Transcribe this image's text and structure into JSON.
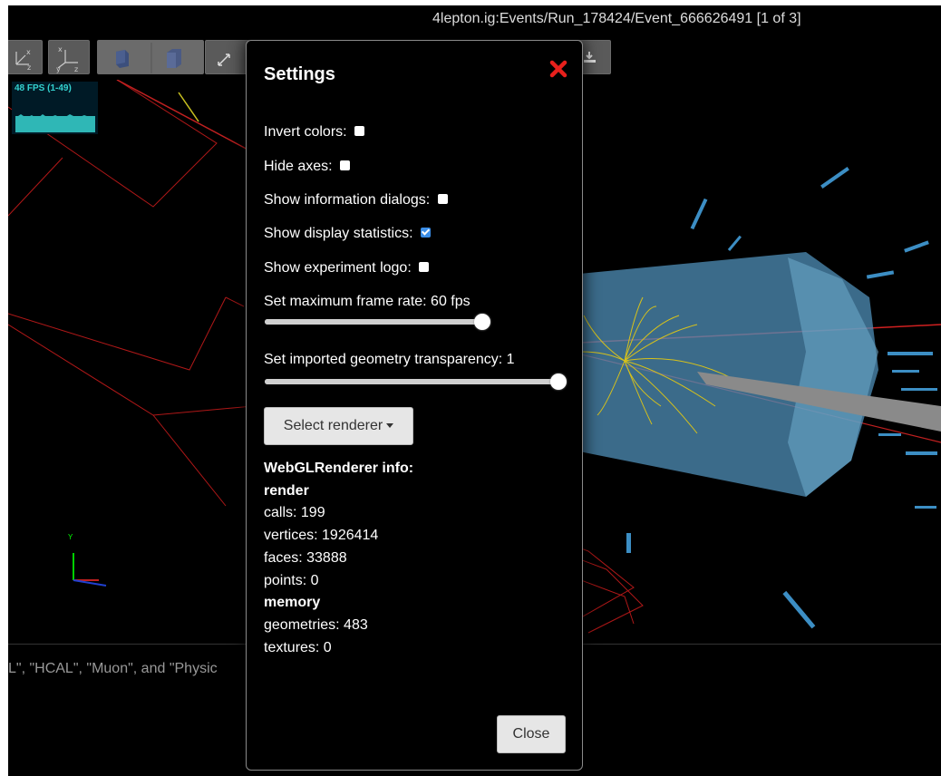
{
  "window": {
    "title": "4lepton.ig:Events/Run_178424/Event_666626491 [1 of 3]"
  },
  "toolbar": {
    "buttons": [
      "view-xz-icon",
      "view-yz-icon",
      "perspective-cube-icon",
      "orthographic-cube-icon",
      "fullscreen-icon",
      "download-icon"
    ]
  },
  "stats": {
    "fps_label": "48 FPS (1-49)"
  },
  "viewport": {
    "axes_y_label": "Y"
  },
  "lower_panel": {
    "text": "L\", \"HCAL\", \"Muon\", and \"Physic"
  },
  "settings": {
    "title": "Settings",
    "options": [
      {
        "label": "Invert colors:",
        "checked": false
      },
      {
        "label": "Hide axes:",
        "checked": false
      },
      {
        "label": "Show information dialogs:",
        "checked": false
      },
      {
        "label": "Show display statistics:",
        "checked": true
      },
      {
        "label": "Show experiment logo:",
        "checked": false
      }
    ],
    "frame_rate": {
      "label": "Set maximum frame rate: 60 fps",
      "value": 60,
      "max": 60
    },
    "transparency": {
      "label": "Set imported geometry transparency: 1",
      "value": 1,
      "max": 1
    },
    "renderer_button": "Select renderer",
    "info": {
      "heading": "WebGLRenderer info:",
      "render_heading": "render",
      "calls": "calls: 199",
      "vertices": "vertices: 1926414",
      "faces": "faces: 33888",
      "points": "points: 0",
      "memory_heading": "memory",
      "geometries": "geometries: 483",
      "textures": "textures: 0"
    },
    "close_button": "Close"
  },
  "colors": {
    "accent_close": "#e8201c",
    "checkbox_checked": "#3b8ee8",
    "fps_graph": "#34d1cf",
    "detector_blue": "#4fa8d8",
    "tracks": "#d8c21a",
    "geometry_red": "#b01818"
  }
}
